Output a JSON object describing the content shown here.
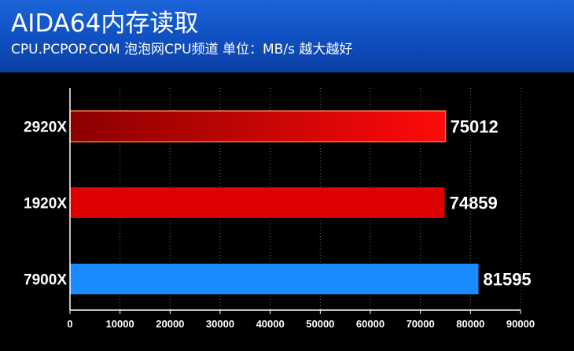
{
  "header": {
    "title": "AIDA64内存读取",
    "subtitle": "CPU.PCPOP.COM 泡泡网CPU频道 单位：MB/s 越大越好"
  },
  "chart_data": {
    "type": "bar",
    "orientation": "horizontal",
    "categories": [
      "2920X",
      "1920X",
      "7900X"
    ],
    "values": [
      75012,
      74859,
      81595
    ],
    "bar_colors": [
      "#ee0000",
      "#dd0000",
      "#1a8cff"
    ],
    "xlim": [
      0,
      90000
    ],
    "xticks": [
      0,
      10000,
      20000,
      30000,
      40000,
      50000,
      60000,
      70000,
      80000,
      90000
    ],
    "grid": "vertical-dotted",
    "data_labels": true
  }
}
